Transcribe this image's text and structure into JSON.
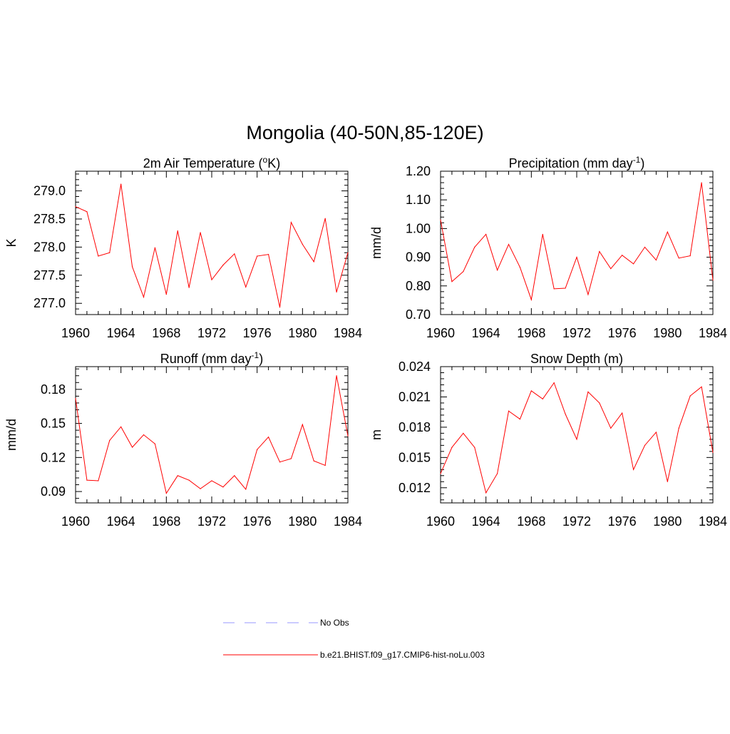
{
  "figure": {
    "title": "Mongolia (40-50N,85-120E)"
  },
  "legend": {
    "entries": [
      {
        "label": "No Obs",
        "color": "#9999ff",
        "dashed": true
      },
      {
        "label": "b.e21.BHIST.f09_g17.CMIP6-hist-noLu.003",
        "color": "#ff0000",
        "dashed": false
      }
    ]
  },
  "chart_data": [
    {
      "type": "line",
      "title": "2m Air Temperature (°K)",
      "title_main": "2m Air Temperature (",
      "title_sup": "o",
      "title_tail": "K)",
      "xlabel": "",
      "ylabel": "K",
      "xlim": [
        1960,
        1984
      ],
      "ylim": [
        276.8,
        279.35
      ],
      "xticks": [
        1960,
        1964,
        1968,
        1972,
        1976,
        1980,
        1984
      ],
      "yticks": [
        277.0,
        277.5,
        278.0,
        278.5,
        279.0
      ],
      "ytick_labels": [
        "277.0",
        "277.5",
        "278.0",
        "278.5",
        "279.0"
      ],
      "grid": false,
      "series": [
        {
          "color": "#ff0000",
          "x": [
            1960,
            1961,
            1962,
            1963,
            1964,
            1965,
            1966,
            1967,
            1968,
            1969,
            1970,
            1971,
            1972,
            1973,
            1974,
            1975,
            1976,
            1977,
            1978,
            1979,
            1980,
            1981,
            1982,
            1983,
            1984
          ],
          "values": [
            278.72,
            278.63,
            277.84,
            277.9,
            279.12,
            277.65,
            277.11,
            277.99,
            277.16,
            278.29,
            277.28,
            278.26,
            277.42,
            277.68,
            277.88,
            277.29,
            277.84,
            277.87,
            276.93,
            278.44,
            278.05,
            277.74,
            278.51,
            277.2,
            277.9
          ]
        }
      ]
    },
    {
      "type": "line",
      "title": "Precipitation (mm day-1)",
      "title_main": "Precipitation (mm day",
      "title_sup": "-1",
      "title_tail": ")",
      "xlabel": "",
      "ylabel": "mm/d",
      "xlim": [
        1960,
        1984
      ],
      "ylim": [
        0.7,
        1.2
      ],
      "xticks": [
        1960,
        1964,
        1968,
        1972,
        1976,
        1980,
        1984
      ],
      "yticks": [
        0.7,
        0.8,
        0.9,
        1.0,
        1.1,
        1.2
      ],
      "ytick_labels": [
        "0.70",
        "0.80",
        "0.90",
        "1.00",
        "1.10",
        "1.20"
      ],
      "grid": false,
      "series": [
        {
          "color": "#ff0000",
          "x": [
            1960,
            1961,
            1962,
            1963,
            1964,
            1965,
            1966,
            1967,
            1968,
            1969,
            1970,
            1971,
            1972,
            1973,
            1974,
            1975,
            1976,
            1977,
            1978,
            1979,
            1980,
            1981,
            1982,
            1983,
            1984
          ],
          "values": [
            1.03,
            0.815,
            0.85,
            0.935,
            0.98,
            0.855,
            0.945,
            0.865,
            0.752,
            0.98,
            0.79,
            0.792,
            0.9,
            0.77,
            0.92,
            0.86,
            0.907,
            0.877,
            0.935,
            0.89,
            0.988,
            0.897,
            0.905,
            1.16,
            0.82
          ]
        }
      ]
    },
    {
      "type": "line",
      "title": "Runoff (mm day-1)",
      "title_main": "Runoff (mm day",
      "title_sup": "-1",
      "title_tail": ")",
      "xlabel": "",
      "ylabel": "mm/d",
      "xlim": [
        1960,
        1984
      ],
      "ylim": [
        0.08,
        0.2
      ],
      "xticks": [
        1960,
        1964,
        1968,
        1972,
        1976,
        1980,
        1984
      ],
      "yticks": [
        0.09,
        0.12,
        0.15,
        0.18
      ],
      "ytick_labels": [
        "0.09",
        "0.12",
        "0.15",
        "0.18"
      ],
      "grid": false,
      "series": [
        {
          "color": "#ff0000",
          "x": [
            1960,
            1961,
            1962,
            1963,
            1964,
            1965,
            1966,
            1967,
            1968,
            1969,
            1970,
            1971,
            1972,
            1973,
            1974,
            1975,
            1976,
            1977,
            1978,
            1979,
            1980,
            1981,
            1982,
            1983,
            1984
          ],
          "values": [
            0.172,
            0.1,
            0.0995,
            0.135,
            0.147,
            0.129,
            0.14,
            0.132,
            0.0885,
            0.104,
            0.1,
            0.0925,
            0.0995,
            0.094,
            0.104,
            0.092,
            0.127,
            0.138,
            0.116,
            0.119,
            0.149,
            0.117,
            0.113,
            0.192,
            0.139
          ]
        }
      ]
    },
    {
      "type": "line",
      "title": "Snow Depth (m)",
      "title_main": "Snow Depth (m)",
      "title_sup": "",
      "title_tail": "",
      "xlabel": "",
      "ylabel": "m",
      "xlim": [
        1960,
        1984
      ],
      "ylim": [
        0.0105,
        0.024
      ],
      "xticks": [
        1960,
        1964,
        1968,
        1972,
        1976,
        1980,
        1984
      ],
      "yticks": [
        0.012,
        0.015,
        0.018,
        0.021,
        0.024
      ],
      "ytick_labels": [
        "0.012",
        "0.015",
        "0.018",
        "0.021",
        "0.024"
      ],
      "grid": false,
      "series": [
        {
          "color": "#ff0000",
          "x": [
            1960,
            1961,
            1962,
            1963,
            1964,
            1965,
            1966,
            1967,
            1968,
            1969,
            1970,
            1971,
            1972,
            1973,
            1974,
            1975,
            1976,
            1977,
            1978,
            1979,
            1980,
            1981,
            1982,
            1983,
            1984
          ],
          "values": [
            0.0134,
            0.016,
            0.0174,
            0.016,
            0.0115,
            0.0134,
            0.0196,
            0.0188,
            0.0216,
            0.0208,
            0.0224,
            0.0193,
            0.0168,
            0.0215,
            0.0204,
            0.0179,
            0.0194,
            0.0138,
            0.0162,
            0.0175,
            0.0126,
            0.0179,
            0.0211,
            0.022,
            0.0155
          ]
        }
      ]
    }
  ]
}
